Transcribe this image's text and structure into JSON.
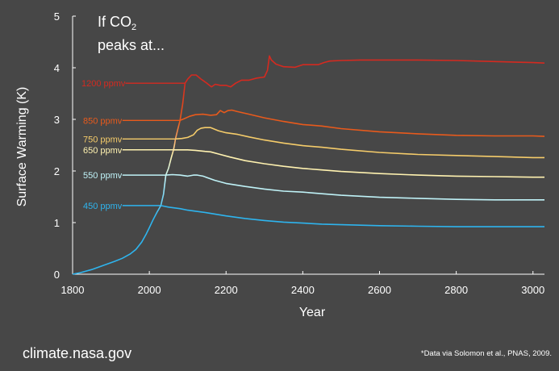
{
  "chart_data": {
    "type": "line",
    "title_line1": "If CO",
    "title_sub": "2",
    "title_line2": "peaks at...",
    "xlabel": "Year",
    "ylabel": "Surface Warming (K)",
    "xlim": [
      1800,
      3030
    ],
    "ylim": [
      0,
      5
    ],
    "x_ticks": [
      1800,
      2000,
      2200,
      2400,
      2600,
      2800,
      3000
    ],
    "y_ticks": [
      0,
      1,
      2,
      3,
      4,
      5
    ],
    "grid": false,
    "legend": "inline-left",
    "series": [
      {
        "name": "1200 ppmv",
        "color": "#d42a20",
        "label_x": 2092,
        "label_y": 3.7,
        "points": [
          [
            2093,
            3.7
          ],
          [
            2100,
            3.78
          ],
          [
            2110,
            3.86
          ],
          [
            2122,
            3.86
          ],
          [
            2135,
            3.78
          ],
          [
            2150,
            3.7
          ],
          [
            2162,
            3.63
          ],
          [
            2172,
            3.68
          ],
          [
            2185,
            3.66
          ],
          [
            2200,
            3.66
          ],
          [
            2212,
            3.63
          ],
          [
            2225,
            3.7
          ],
          [
            2240,
            3.76
          ],
          [
            2260,
            3.76
          ],
          [
            2280,
            3.8
          ],
          [
            2300,
            3.82
          ],
          [
            2308,
            3.95
          ],
          [
            2313,
            4.23
          ],
          [
            2318,
            4.15
          ],
          [
            2330,
            4.07
          ],
          [
            2350,
            4.02
          ],
          [
            2380,
            4.01
          ],
          [
            2400,
            4.06
          ],
          [
            2420,
            4.06
          ],
          [
            2440,
            4.06
          ],
          [
            2455,
            4.1
          ],
          [
            2470,
            4.13
          ],
          [
            2500,
            4.14
          ],
          [
            2550,
            4.15
          ],
          [
            2600,
            4.15
          ],
          [
            2700,
            4.15
          ],
          [
            2800,
            4.14
          ],
          [
            2900,
            4.12
          ],
          [
            3000,
            4.1
          ],
          [
            3030,
            4.09
          ]
        ]
      },
      {
        "name": "850 ppmv",
        "color": "#e85a1c",
        "label_x": 2075,
        "label_y": 2.98,
        "points": [
          [
            2080,
            2.98
          ],
          [
            2090,
            3.01
          ],
          [
            2105,
            3.06
          ],
          [
            2120,
            3.09
          ],
          [
            2140,
            3.1
          ],
          [
            2160,
            3.08
          ],
          [
            2175,
            3.09
          ],
          [
            2185,
            3.17
          ],
          [
            2195,
            3.13
          ],
          [
            2205,
            3.17
          ],
          [
            2215,
            3.18
          ],
          [
            2230,
            3.15
          ],
          [
            2260,
            3.1
          ],
          [
            2300,
            3.03
          ],
          [
            2350,
            2.96
          ],
          [
            2400,
            2.9
          ],
          [
            2450,
            2.87
          ],
          [
            2500,
            2.82
          ],
          [
            2600,
            2.76
          ],
          [
            2700,
            2.72
          ],
          [
            2800,
            2.69
          ],
          [
            2900,
            2.68
          ],
          [
            3000,
            2.68
          ],
          [
            3030,
            2.67
          ]
        ]
      },
      {
        "name": "750 ppmv",
        "color": "#f5cc6a",
        "label_x": 2065,
        "label_y": 2.62,
        "points": [
          [
            2068,
            2.62
          ],
          [
            2085,
            2.63
          ],
          [
            2100,
            2.65
          ],
          [
            2115,
            2.7
          ],
          [
            2125,
            2.79
          ],
          [
            2135,
            2.83
          ],
          [
            2145,
            2.84
          ],
          [
            2160,
            2.84
          ],
          [
            2180,
            2.78
          ],
          [
            2200,
            2.74
          ],
          [
            2230,
            2.71
          ],
          [
            2260,
            2.66
          ],
          [
            2300,
            2.6
          ],
          [
            2350,
            2.54
          ],
          [
            2400,
            2.49
          ],
          [
            2450,
            2.46
          ],
          [
            2500,
            2.42
          ],
          [
            2600,
            2.36
          ],
          [
            2700,
            2.32
          ],
          [
            2800,
            2.3
          ],
          [
            2900,
            2.28
          ],
          [
            3000,
            2.26
          ],
          [
            3030,
            2.26
          ]
        ]
      },
      {
        "name": "650 ppmv",
        "color": "#fff2b0",
        "label_x": 2060,
        "label_y": 2.41,
        "points": [
          [
            2063,
            2.41
          ],
          [
            2080,
            2.41
          ],
          [
            2100,
            2.41
          ],
          [
            2120,
            2.4
          ],
          [
            2145,
            2.38
          ],
          [
            2160,
            2.37
          ],
          [
            2180,
            2.33
          ],
          [
            2210,
            2.27
          ],
          [
            2250,
            2.2
          ],
          [
            2300,
            2.14
          ],
          [
            2350,
            2.09
          ],
          [
            2400,
            2.05
          ],
          [
            2450,
            2.02
          ],
          [
            2500,
            1.99
          ],
          [
            2600,
            1.95
          ],
          [
            2700,
            1.92
          ],
          [
            2800,
            1.9
          ],
          [
            2900,
            1.89
          ],
          [
            3000,
            1.88
          ],
          [
            3030,
            1.88
          ]
        ]
      },
      {
        "name": "550 ppmv",
        "color": "#bff2f7",
        "label_x": 2040,
        "label_y": 1.92,
        "points": [
          [
            2043,
            1.92
          ],
          [
            2060,
            1.93
          ],
          [
            2080,
            1.92
          ],
          [
            2100,
            1.9
          ],
          [
            2115,
            1.92
          ],
          [
            2125,
            1.92
          ],
          [
            2140,
            1.9
          ],
          [
            2170,
            1.82
          ],
          [
            2200,
            1.76
          ],
          [
            2250,
            1.7
          ],
          [
            2300,
            1.65
          ],
          [
            2350,
            1.61
          ],
          [
            2400,
            1.59
          ],
          [
            2450,
            1.56
          ],
          [
            2500,
            1.53
          ],
          [
            2600,
            1.49
          ],
          [
            2700,
            1.47
          ],
          [
            2800,
            1.45
          ],
          [
            2900,
            1.44
          ],
          [
            3000,
            1.44
          ],
          [
            3030,
            1.44
          ]
        ]
      },
      {
        "name": "450 ppmv",
        "color": "#2eb4ee",
        "label_x": 2015,
        "label_y": 1.33,
        "points": [
          [
            2030,
            1.33
          ],
          [
            2050,
            1.3
          ],
          [
            2080,
            1.27
          ],
          [
            2100,
            1.24
          ],
          [
            2150,
            1.19
          ],
          [
            2200,
            1.13
          ],
          [
            2250,
            1.08
          ],
          [
            2300,
            1.04
          ],
          [
            2350,
            1.01
          ],
          [
            2400,
            0.99
          ],
          [
            2450,
            0.97
          ],
          [
            2500,
            0.96
          ],
          [
            2600,
            0.94
          ],
          [
            2700,
            0.93
          ],
          [
            2800,
            0.92
          ],
          [
            2900,
            0.92
          ],
          [
            3000,
            0.92
          ],
          [
            3030,
            0.92
          ]
        ]
      }
    ],
    "common_rise": {
      "color_gradient": [
        "#2eb4ee",
        "#bff2f7",
        "#fff2b0",
        "#e85a1c",
        "#d42a20"
      ],
      "points": [
        [
          1800,
          0.0
        ],
        [
          1820,
          0.03
        ],
        [
          1850,
          0.09
        ],
        [
          1880,
          0.17
        ],
        [
          1910,
          0.25
        ],
        [
          1930,
          0.31
        ],
        [
          1950,
          0.39
        ],
        [
          1965,
          0.48
        ],
        [
          1980,
          0.62
        ],
        [
          1992,
          0.78
        ],
        [
          2000,
          0.9
        ],
        [
          2010,
          1.06
        ],
        [
          2020,
          1.2
        ],
        [
          2030,
          1.33
        ],
        [
          2037,
          1.55
        ],
        [
          2043,
          1.92
        ],
        [
          2050,
          2.05
        ],
        [
          2057,
          2.25
        ],
        [
          2063,
          2.41
        ],
        [
          2066,
          2.52
        ],
        [
          2068,
          2.62
        ],
        [
          2074,
          2.8
        ],
        [
          2080,
          2.98
        ],
        [
          2087,
          3.3
        ],
        [
          2093,
          3.7
        ]
      ]
    }
  },
  "title": {
    "line1": "If CO",
    "sub": "2",
    "line2": "peaks at..."
  },
  "source": "climate.nasa.gov",
  "footnote": "*Data via Solomon et al., PNAS, 2009."
}
